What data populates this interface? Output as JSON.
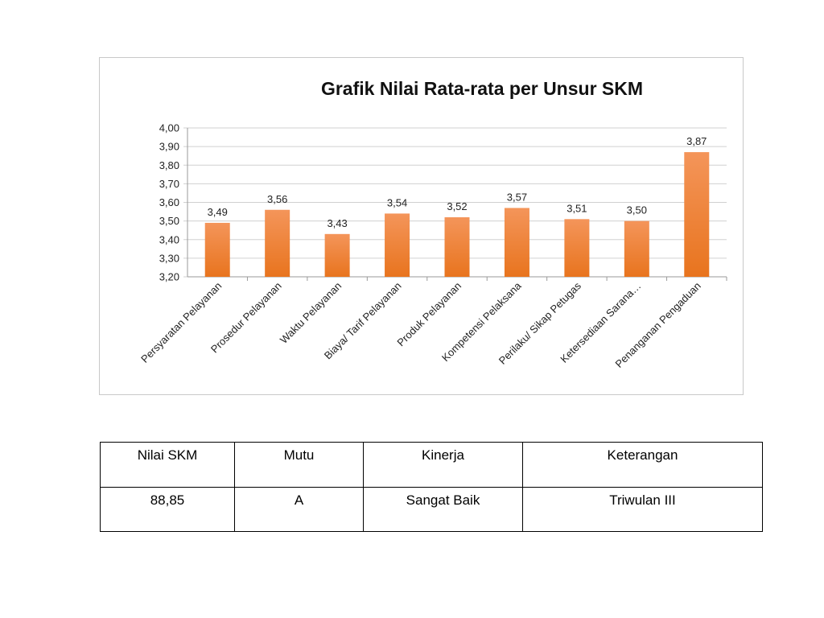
{
  "chart_data": {
    "type": "bar",
    "title": "Grafik Nilai Rata-rata per Unsur SKM",
    "categories": [
      "Persyaratan Pelayanan",
      "Prosedur Pelayanan",
      "Waktu Pelayanan",
      "Biaya/ Tarif Pelayanan",
      "Produk Pelayanan",
      "Kompetensi Pelaksana",
      "Perilaku/ Sikap Petugas",
      "Ketersediaan Sarana…",
      "Penanganan Pengaduan"
    ],
    "values": [
      3.49,
      3.56,
      3.43,
      3.54,
      3.52,
      3.57,
      3.51,
      3.5,
      3.87
    ],
    "data_labels": [
      "3,49",
      "3,56",
      "3,43",
      "3,54",
      "3,52",
      "3,57",
      "3,51",
      "3,50",
      "3,87"
    ],
    "ylim": [
      3.2,
      4.0
    ],
    "yticks": [
      "3,20",
      "3,30",
      "3,40",
      "3,50",
      "3,60",
      "3,70",
      "3,80",
      "3,90",
      "4,00"
    ],
    "grid": true,
    "legend": "none",
    "colors": {
      "bar_top": "#F4955A",
      "bar_bottom": "#E8741E"
    }
  },
  "table": {
    "headers": [
      "Nilai SKM",
      "Mutu",
      "Kinerja",
      "Keterangan"
    ],
    "values": [
      "88,85",
      "A",
      "Sangat Baik",
      "Triwulan  III"
    ]
  }
}
